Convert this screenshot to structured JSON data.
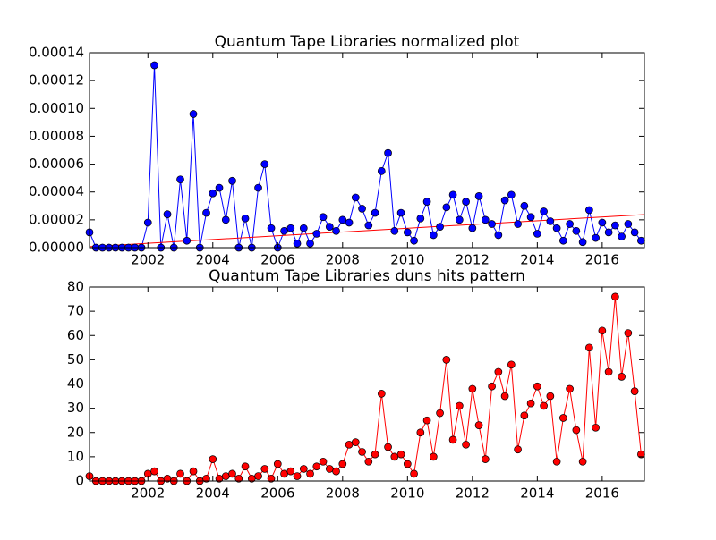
{
  "chart_data": [
    {
      "type": "line",
      "title": "Quantum Tape Libraries normalized plot",
      "xlim": [
        2000.2,
        2017.3
      ],
      "xticks": [
        2002,
        2004,
        2006,
        2008,
        2010,
        2012,
        2014,
        2016
      ],
      "ylim": [
        0,
        0.00014
      ],
      "yticks": [
        {
          "value": 0,
          "label": "0.00000"
        },
        {
          "value": 2e-05,
          "label": "0.00002"
        },
        {
          "value": 4e-05,
          "label": "0.00004"
        },
        {
          "value": 6e-05,
          "label": "0.00006"
        },
        {
          "value": 8e-05,
          "label": "0.00008"
        },
        {
          "value": 0.0001,
          "label": "0.00010"
        },
        {
          "value": 0.00012,
          "label": "0.00012"
        },
        {
          "value": 0.00014,
          "label": "0.00014"
        }
      ],
      "series": [
        {
          "color": "#0000ff",
          "marker": true,
          "x": [
            2000.2,
            2000.4,
            2000.6,
            2000.8,
            2001.0,
            2001.2,
            2001.4,
            2001.6,
            2001.8,
            2002.0,
            2002.2,
            2002.4,
            2002.6,
            2002.8,
            2003.0,
            2003.2,
            2003.4,
            2003.6,
            2003.8,
            2004.0,
            2004.2,
            2004.4,
            2004.6,
            2004.8,
            2005.0,
            2005.2,
            2005.4,
            2005.6,
            2005.8,
            2006.0,
            2006.2,
            2006.4,
            2006.6,
            2006.8,
            2007.0,
            2007.2,
            2007.4,
            2007.6,
            2007.8,
            2008.0,
            2008.2,
            2008.4,
            2008.6,
            2008.8,
            2009.0,
            2009.2,
            2009.4,
            2009.6,
            2009.8,
            2010.0,
            2010.2,
            2010.4,
            2010.6,
            2010.8,
            2011.0,
            2011.2,
            2011.4,
            2011.6,
            2011.8,
            2012.0,
            2012.2,
            2012.4,
            2012.6,
            2012.8,
            2013.0,
            2013.2,
            2013.4,
            2013.6,
            2013.8,
            2014.0,
            2014.2,
            2014.4,
            2014.6,
            2014.8,
            2015.0,
            2015.2,
            2015.4,
            2015.6,
            2015.8,
            2016.0,
            2016.2,
            2016.4,
            2016.6,
            2016.8,
            2017.0,
            2017.2
          ],
          "values": [
            1.1e-05,
            0,
            0,
            0,
            0,
            0,
            0,
            0,
            0,
            1.8e-05,
            0.000131,
            0,
            2.4e-05,
            0,
            4.9e-05,
            5e-06,
            9.6e-05,
            0,
            2.5e-05,
            3.9e-05,
            4.3e-05,
            2e-05,
            4.8e-05,
            0,
            2.1e-05,
            0,
            4.3e-05,
            6e-05,
            1.4e-05,
            0,
            1.2e-05,
            1.4e-05,
            3e-06,
            1.4e-05,
            3e-06,
            1e-05,
            2.2e-05,
            1.5e-05,
            1.2e-05,
            2e-05,
            1.8e-05,
            3.6e-05,
            2.8e-05,
            1.6e-05,
            2.5e-05,
            5.5e-05,
            6.8e-05,
            1.2e-05,
            2.5e-05,
            1.1e-05,
            5e-06,
            2.1e-05,
            3.3e-05,
            9e-06,
            1.5e-05,
            2.9e-05,
            3.8e-05,
            2e-05,
            3.3e-05,
            1.4e-05,
            3.7e-05,
            2e-05,
            1.7e-05,
            9e-06,
            3.4e-05,
            3.8e-05,
            1.7e-05,
            3e-05,
            2.2e-05,
            1e-05,
            2.6e-05,
            1.9e-05,
            1.4e-05,
            5e-06,
            1.7e-05,
            1.2e-05,
            4e-06,
            2.7e-05,
            7e-06,
            1.8e-05,
            1.1e-05,
            1.6e-05,
            8e-06,
            1.7e-05,
            1.1e-05,
            5e-06
          ]
        },
        {
          "color": "#ff0000",
          "marker": false,
          "x": [
            2000.2,
            2017.3
          ],
          "values": [
            7e-07,
            2.38e-05
          ]
        }
      ]
    },
    {
      "type": "line",
      "title": "Quantum Tape Libraries duns hits pattern",
      "xlim": [
        2000.2,
        2017.3
      ],
      "xticks": [
        2002,
        2004,
        2006,
        2008,
        2010,
        2012,
        2014,
        2016
      ],
      "ylim": [
        0,
        80
      ],
      "yticks": [
        0,
        10,
        20,
        30,
        40,
        50,
        60,
        70,
        80
      ],
      "series": [
        {
          "color": "#ff0000",
          "marker": true,
          "x": [
            2000.2,
            2000.4,
            2000.6,
            2000.8,
            2001.0,
            2001.2,
            2001.4,
            2001.6,
            2001.8,
            2002.0,
            2002.2,
            2002.4,
            2002.6,
            2002.8,
            2003.0,
            2003.2,
            2003.4,
            2003.6,
            2003.8,
            2004.0,
            2004.2,
            2004.4,
            2004.6,
            2004.8,
            2005.0,
            2005.2,
            2005.4,
            2005.6,
            2005.8,
            2006.0,
            2006.2,
            2006.4,
            2006.6,
            2006.8,
            2007.0,
            2007.2,
            2007.4,
            2007.6,
            2007.8,
            2008.0,
            2008.2,
            2008.4,
            2008.6,
            2008.8,
            2009.0,
            2009.2,
            2009.4,
            2009.6,
            2009.8,
            2010.0,
            2010.2,
            2010.4,
            2010.6,
            2010.8,
            2011.0,
            2011.2,
            2011.4,
            2011.6,
            2011.8,
            2012.0,
            2012.2,
            2012.4,
            2012.6,
            2012.8,
            2013.0,
            2013.2,
            2013.4,
            2013.6,
            2013.8,
            2014.0,
            2014.2,
            2014.4,
            2014.6,
            2014.8,
            2015.0,
            2015.2,
            2015.4,
            2015.6,
            2015.8,
            2016.0,
            2016.2,
            2016.4,
            2016.6,
            2016.8,
            2017.0,
            2017.2
          ],
          "values": [
            2,
            0,
            0,
            0,
            0,
            0,
            0,
            0,
            0,
            3,
            4,
            0,
            1,
            0,
            3,
            0,
            4,
            0,
            1,
            9,
            1,
            2,
            3,
            1,
            6,
            1,
            2,
            5,
            1,
            7,
            3,
            4,
            2,
            5,
            3,
            6,
            8,
            5,
            4,
            7,
            15,
            16,
            12,
            8,
            11,
            36,
            14,
            10,
            11,
            7,
            3,
            20,
            25,
            10,
            28,
            50,
            17,
            31,
            15,
            38,
            23,
            9,
            39,
            45,
            35,
            48,
            13,
            27,
            32,
            39,
            31,
            35,
            8,
            26,
            38,
            21,
            8,
            55,
            22,
            62,
            45,
            76,
            43,
            61,
            37,
            11
          ]
        }
      ]
    }
  ]
}
